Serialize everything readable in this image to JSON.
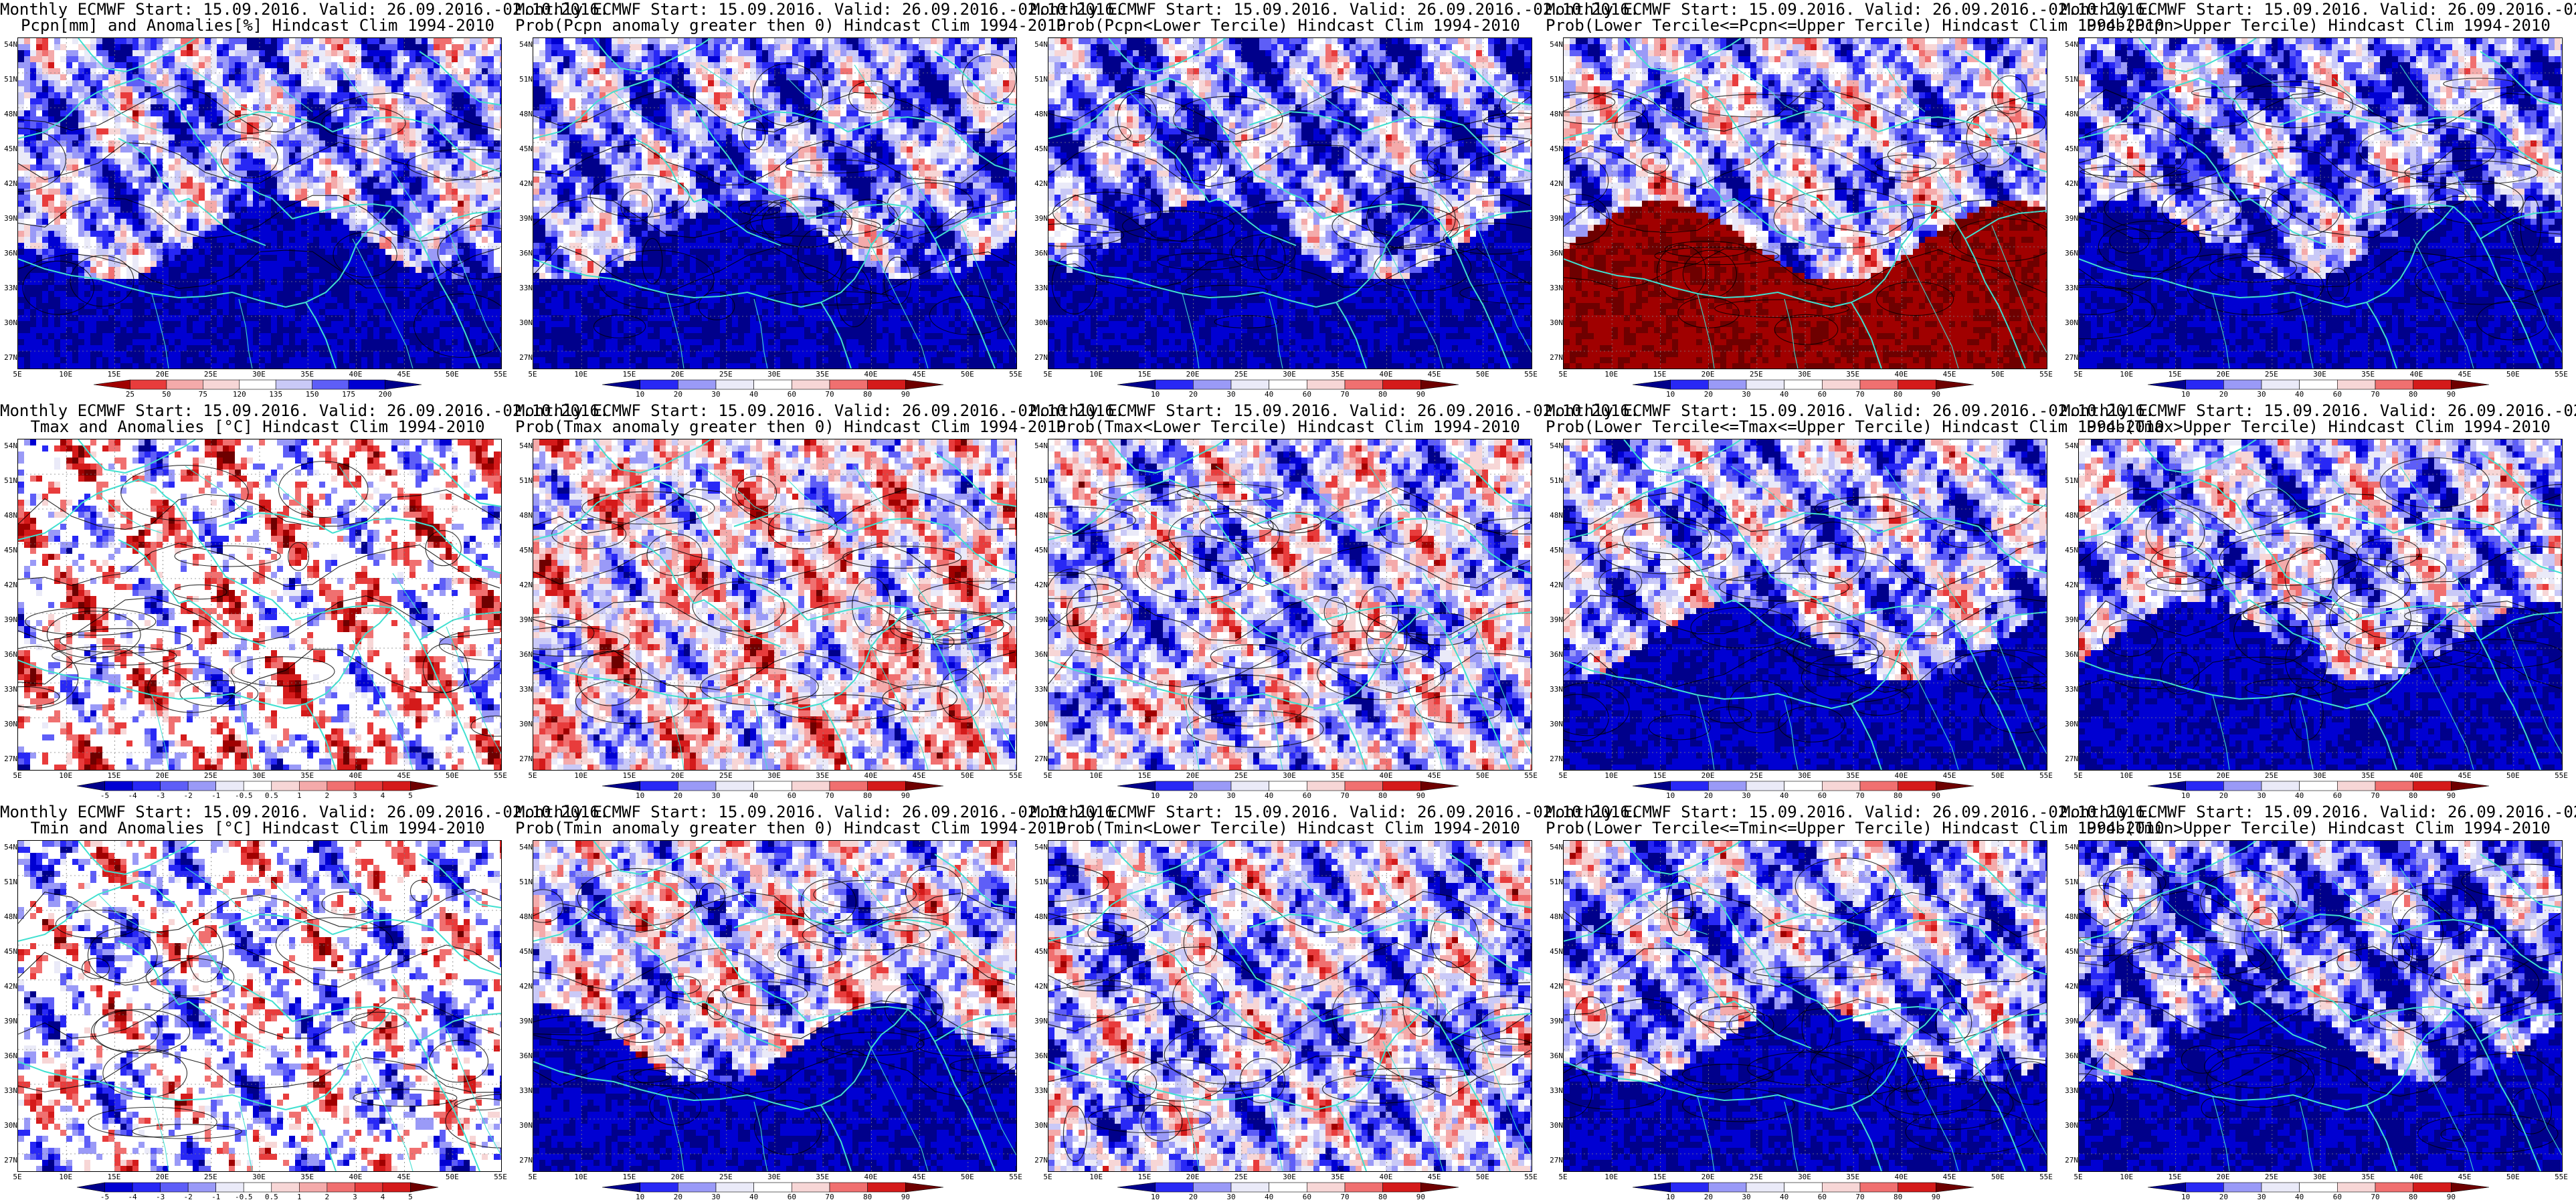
{
  "common_title": "Monthly ECMWF Start: 15.09.2016. Valid: 26.09.2016.-02.10.2016.",
  "lat_labels": [
    "54N",
    "51N",
    "48N",
    "45N",
    "42N",
    "39N",
    "36N",
    "33N",
    "30N",
    "27N"
  ],
  "lon_labels": [
    "5E",
    "10E",
    "15E",
    "20E",
    "25E",
    "30E",
    "35E",
    "40E",
    "45E",
    "50E",
    "55E"
  ],
  "colors": {
    "blue_scale": [
      "#00008b",
      "#0000d2",
      "#2828f5",
      "#5e5ef7",
      "#9a9af7",
      "#c9c9f7",
      "#eaeaf8"
    ],
    "white": "#ffffff",
    "red_scale": [
      "#f7d6d6",
      "#f4aaaa",
      "#f07070",
      "#e83c3c",
      "#d41a1a",
      "#a00000",
      "#6e0000"
    ],
    "coast": "#40e0d0",
    "contour": "#000000"
  },
  "panels": [
    {
      "subtitle": "Pcpn[mm] and Anomalies[%] Hindcast Clim 1994-2010",
      "type": "pcpn",
      "colorbar": [
        "25",
        "50",
        "75",
        "120",
        "135",
        "150",
        "175",
        "200"
      ],
      "bias": -0.35,
      "south": "blue"
    },
    {
      "subtitle": "Prob(Pcpn anomaly greater then 0) Hindcast Clim 1994-2010",
      "type": "prob",
      "colorbar": [
        "10",
        "20",
        "30",
        "40",
        "60",
        "70",
        "80",
        "90"
      ],
      "bias": -0.4,
      "south": "blue"
    },
    {
      "subtitle": "Prob(Pcpn<Lower Tercile) Hindcast Clim 1994-2010",
      "type": "prob",
      "colorbar": [
        "10",
        "20",
        "30",
        "40",
        "60",
        "70",
        "80",
        "90"
      ],
      "bias": -0.45,
      "south": "blue"
    },
    {
      "subtitle": "Prob(Lower Tercile<=Pcpn<=Upper Tercile) Hindcast Clim 1994-2010",
      "type": "prob",
      "colorbar": [
        "10",
        "20",
        "30",
        "40",
        "60",
        "70",
        "80",
        "90"
      ],
      "bias": -0.25,
      "south": "red"
    },
    {
      "subtitle": "Prob(Pcpn>Upper Tercile) Hindcast Clim 1994-2010",
      "type": "prob",
      "colorbar": [
        "10",
        "20",
        "30",
        "40",
        "60",
        "70",
        "80",
        "90"
      ],
      "bias": -0.45,
      "south": "blue"
    },
    {
      "subtitle": "Tmax and Anomalies [°C] Hindcast Clim 1994-2010",
      "type": "anom",
      "colorbar": [
        "-5",
        "-4",
        "-3",
        "-2",
        "-1",
        "-0.5",
        "0.5",
        "1",
        "2",
        "3",
        "4",
        "5"
      ],
      "bias": 0.05,
      "south": "mixed"
    },
    {
      "subtitle": "Prob(Tmax anomaly greater then 0) Hindcast Clim 1994-2010",
      "type": "prob",
      "colorbar": [
        "10",
        "20",
        "30",
        "40",
        "60",
        "70",
        "80",
        "90"
      ],
      "bias": 0.0,
      "south": "mixed"
    },
    {
      "subtitle": "Prob(Tmax<Lower Tercile) Hindcast Clim 1994-2010",
      "type": "prob",
      "colorbar": [
        "10",
        "20",
        "30",
        "40",
        "60",
        "70",
        "80",
        "90"
      ],
      "bias": -0.2,
      "south": "mixed"
    },
    {
      "subtitle": "Prob(Lower Tercile<=Tmax<=Upper Tercile) Hindcast Clim 1994-2010",
      "type": "prob",
      "colorbar": [
        "10",
        "20",
        "30",
        "40",
        "60",
        "70",
        "80",
        "90"
      ],
      "bias": -0.3,
      "south": "blue"
    },
    {
      "subtitle": "Prob(Tmax>Upper Tercile) Hindcast Clim 1994-2010",
      "type": "prob",
      "colorbar": [
        "10",
        "20",
        "30",
        "40",
        "60",
        "70",
        "80",
        "90"
      ],
      "bias": -0.3,
      "south": "blue"
    },
    {
      "subtitle": "Tmin and Anomalies [°C] Hindcast Clim 1994-2010",
      "type": "anom",
      "colorbar": [
        "-5",
        "-4",
        "-3",
        "-2",
        "-1",
        "-0.5",
        "0.5",
        "1",
        "2",
        "3",
        "4",
        "5"
      ],
      "bias": -0.1,
      "south": "mixed"
    },
    {
      "subtitle": "Prob(Tmin anomaly greater then 0) Hindcast Clim 1994-2010",
      "type": "prob",
      "colorbar": [
        "10",
        "20",
        "30",
        "40",
        "60",
        "70",
        "80",
        "90"
      ],
      "bias": -0.15,
      "south": "blue"
    },
    {
      "subtitle": "Prob(Tmin<Lower Tercile) Hindcast Clim 1994-2010",
      "type": "prob",
      "colorbar": [
        "10",
        "20",
        "30",
        "40",
        "60",
        "70",
        "80",
        "90"
      ],
      "bias": -0.25,
      "south": "mixed"
    },
    {
      "subtitle": "Prob(Lower Tercile<=Tmin<=Upper Tercile) Hindcast Clim 1994-2010",
      "type": "prob",
      "colorbar": [
        "10",
        "20",
        "30",
        "40",
        "60",
        "70",
        "80",
        "90"
      ],
      "bias": -0.35,
      "south": "blue"
    },
    {
      "subtitle": "Prob(Tmin>Upper Tercile) Hindcast Clim 1994-2010",
      "type": "prob",
      "colorbar": [
        "10",
        "20",
        "30",
        "40",
        "60",
        "70",
        "80",
        "90"
      ],
      "bias": -0.5,
      "south": "blue"
    }
  ]
}
